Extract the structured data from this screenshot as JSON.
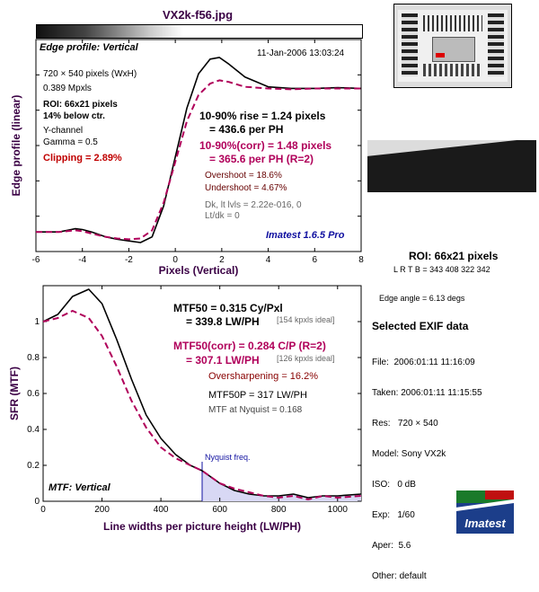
{
  "file_title": "VX2k-f56.jpg",
  "edge_panel": {
    "label": "Edge profile: Vertical",
    "date": "11-Jan-2006 13:03:24",
    "info": [
      "720 × 540 pixels (WxH)",
      "0.389 Mpxls",
      "ROI: 66x21 pixels",
      "14% below ctr.",
      "Y-channel",
      "Gamma = 0.5",
      "Clipping =  2.89%"
    ],
    "rise_1": "10-90% rise = 1.24 pixels",
    "rise_2": "= 436.6 per PH",
    "rise_corr_1": "10-90%(corr) = 1.48 pixels",
    "rise_corr_2": "= 365.6 per PH  (R=2)",
    "overshoot": "Overshoot = 18.6%",
    "undershoot": "Undershoot = 4.67%",
    "dk": "Dk, lt lvls = 2.22e-016, 0",
    "ltdk": "Lt/dk = 0",
    "imatest": "Imatest 1.6.5 Pro"
  },
  "roi_side": {
    "title": "ROI: 66x21 pixels",
    "lrtb": "L R  T B = 343 408  322 342",
    "edge_angle": "Edge angle = 6.13 degs"
  },
  "mtf_panel": {
    "label": "MTF: Vertical",
    "mtf50_1": "MTF50 = 0.315 Cy/Pxl",
    "mtf50_2": "= 339.8 LW/PH",
    "mtf50_ideal": "[154 kpxls ideal]",
    "mtf50c_1": "MTF50(corr) = 0.284 C/P  (R=2)",
    "mtf50c_2": "= 307.1 LW/PH",
    "mtf50c_ideal": "[126 kpxls ideal]",
    "oversharp": "Oversharpening = 16.2%",
    "mtf50p": "MTF50P = 317 LW/PH",
    "nyq_mtf": "MTF at Nyquist = 0.168",
    "nyq_label": "Nyquist freq."
  },
  "exif": {
    "title": "Selected EXIF data",
    "rows": [
      "File:  2006:01:11 11:16:09",
      "Taken: 2006:01:11 11:15:55",
      "Res:   720 × 540",
      "Model: Sony VX2k",
      "ISO:   0 dB",
      "Exp:   1/60",
      "Aper:  5.6",
      "Other: default"
    ]
  },
  "logo_text": "Imatest",
  "colors": {
    "black": "#000000",
    "magenta": "#b0005a",
    "red": "#c00000",
    "blue": "#1010a0"
  },
  "chart_data": [
    {
      "type": "line",
      "ylabel": "Edge profile (linear)",
      "xlabel": "Pixels (Vertical)",
      "xlim": [
        -6,
        8
      ],
      "xticks": [
        -6,
        -4,
        -2,
        0,
        2,
        4,
        6,
        8
      ],
      "ylim": [
        0,
        1.3
      ],
      "grid": false,
      "series": [
        {
          "color": "#000000",
          "dash": false,
          "x": [
            -6,
            -5,
            -4.3,
            -4,
            -3.6,
            -3,
            -2.5,
            -2,
            -1.5,
            -1,
            -0.5,
            0,
            0.5,
            1,
            1.5,
            1.9,
            2.3,
            3,
            4,
            5,
            6,
            7,
            8
          ],
          "y": [
            0.12,
            0.12,
            0.14,
            0.135,
            0.12,
            0.09,
            0.075,
            0.065,
            0.055,
            0.09,
            0.28,
            0.58,
            0.88,
            1.09,
            1.18,
            1.19,
            1.15,
            1.07,
            1.01,
            1.0,
            1.0,
            1.005,
            1.0
          ]
        },
        {
          "color": "#b0005a",
          "dash": true,
          "x": [
            -6,
            -5,
            -4.3,
            -4,
            -3.6,
            -3,
            -2.5,
            -2,
            -1.5,
            -1,
            -0.5,
            0,
            0.5,
            1,
            1.5,
            1.9,
            2.3,
            3,
            4,
            5,
            6,
            7,
            8
          ],
          "y": [
            0.12,
            0.12,
            0.13,
            0.125,
            0.11,
            0.09,
            0.08,
            0.075,
            0.08,
            0.13,
            0.3,
            0.55,
            0.8,
            0.96,
            1.03,
            1.05,
            1.04,
            1.01,
            1.0,
            0.995,
            1.0,
            1.0,
            1.0
          ]
        }
      ]
    },
    {
      "type": "line",
      "ylabel": "SFR (MTF)",
      "xlabel": "Line widths per picture height (LW/PH)",
      "xlim": [
        0,
        1080
      ],
      "xticks": [
        0,
        200,
        400,
        600,
        800,
        1000
      ],
      "ylim": [
        0,
        1.2
      ],
      "yticks": [
        0,
        0.2,
        0.4,
        0.6,
        0.8,
        1
      ],
      "grid": false,
      "nyquist_x": 540,
      "series": [
        {
          "color": "#000000",
          "dash": false,
          "x": [
            0,
            50,
            100,
            155,
            200,
            250,
            300,
            350,
            400,
            450,
            500,
            540,
            600,
            650,
            700,
            750,
            800,
            850,
            900,
            950,
            1000,
            1080
          ],
          "y": [
            1.0,
            1.04,
            1.14,
            1.18,
            1.1,
            0.9,
            0.68,
            0.48,
            0.35,
            0.26,
            0.2,
            0.17,
            0.1,
            0.06,
            0.04,
            0.03,
            0.03,
            0.04,
            0.02,
            0.03,
            0.03,
            0.04
          ]
        },
        {
          "color": "#b0005a",
          "dash": true,
          "x": [
            0,
            50,
            100,
            155,
            200,
            250,
            300,
            350,
            400,
            450,
            500,
            540,
            600,
            650,
            700,
            750,
            800,
            850,
            900,
            950,
            1000,
            1080
          ],
          "y": [
            1.0,
            1.02,
            1.06,
            1.02,
            0.92,
            0.75,
            0.56,
            0.41,
            0.3,
            0.24,
            0.2,
            0.17,
            0.1,
            0.07,
            0.05,
            0.03,
            0.02,
            0.03,
            0.01,
            0.03,
            0.02,
            0.03
          ]
        }
      ]
    }
  ]
}
